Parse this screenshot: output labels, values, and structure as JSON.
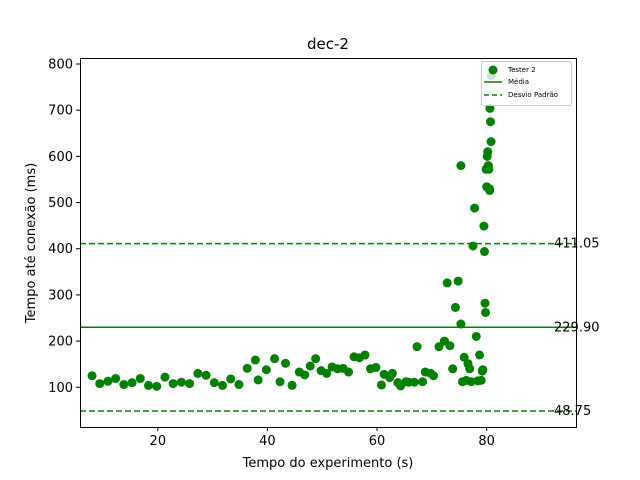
{
  "chart_data": {
    "type": "scatter",
    "title": "dec-2",
    "xlabel": "Tempo do experimento (s)",
    "ylabel": "Tempo até conexão (ms)",
    "xlim": [
      5.8,
      96.3
    ],
    "ylim": [
      14,
      813
    ],
    "xticks": [
      20,
      40,
      60,
      80
    ],
    "yticks": [
      100,
      200,
      300,
      400,
      500,
      600,
      700,
      800
    ],
    "grid": false,
    "legend_position": "top-right",
    "colors": {
      "points": "#008000",
      "lines": "#008000"
    },
    "legend": [
      {
        "label": "Tester 2",
        "kind": "marker"
      },
      {
        "label": "Média",
        "kind": "solid-line"
      },
      {
        "label": "Desvio Padrão",
        "kind": "dashed-line"
      }
    ],
    "reference_lines": [
      {
        "role": "mean",
        "value": 229.9,
        "label": "229.90",
        "style": "solid"
      },
      {
        "role": "std-upper",
        "value": 411.05,
        "label": "411.05",
        "style": "dashed"
      },
      {
        "role": "std-lower",
        "value": 48.75,
        "label": "48.75",
        "style": "dashed"
      }
    ],
    "series": [
      {
        "name": "Tester 2",
        "points": [
          [
            8,
            125
          ],
          [
            9.4,
            108
          ],
          [
            10.9,
            113
          ],
          [
            12.3,
            119
          ],
          [
            13.8,
            106
          ],
          [
            15.3,
            110
          ],
          [
            16.8,
            119
          ],
          [
            18.3,
            104
          ],
          [
            19.8,
            102
          ],
          [
            21.3,
            122
          ],
          [
            22.8,
            108
          ],
          [
            24.3,
            111
          ],
          [
            25.8,
            108
          ],
          [
            27.3,
            130
          ],
          [
            28.8,
            126
          ],
          [
            30.3,
            110
          ],
          [
            31.8,
            104
          ],
          [
            33.3,
            118
          ],
          [
            34.8,
            106
          ],
          [
            36.3,
            141
          ],
          [
            37.8,
            159
          ],
          [
            38.3,
            116
          ],
          [
            39.8,
            138
          ],
          [
            41.3,
            162
          ],
          [
            42.3,
            112
          ],
          [
            43.3,
            152
          ],
          [
            44.5,
            104
          ],
          [
            45.8,
            133
          ],
          [
            46.8,
            127
          ],
          [
            47.8,
            146
          ],
          [
            48.8,
            162
          ],
          [
            49.8,
            136
          ],
          [
            50.8,
            130
          ],
          [
            51.8,
            144
          ],
          [
            52.8,
            140
          ],
          [
            53.8,
            141
          ],
          [
            54.8,
            133
          ],
          [
            55.8,
            166
          ],
          [
            56.8,
            164
          ],
          [
            57.8,
            170
          ],
          [
            58.8,
            140
          ],
          [
            59.8,
            143
          ],
          [
            60.8,
            105
          ],
          [
            61.3,
            128
          ],
          [
            62.3,
            121
          ],
          [
            62.8,
            130
          ],
          [
            63.8,
            110
          ],
          [
            64.3,
            103
          ],
          [
            65.3,
            112
          ],
          [
            65.8,
            111
          ],
          [
            66.8,
            111
          ],
          [
            67.3,
            188
          ],
          [
            68.3,
            112
          ],
          [
            68.8,
            133
          ],
          [
            69.8,
            130
          ],
          [
            70.3,
            125
          ],
          [
            71.3,
            188
          ],
          [
            72.3,
            200
          ],
          [
            72.8,
            326
          ],
          [
            73.3,
            190
          ],
          [
            73.8,
            140
          ],
          [
            74.3,
            273
          ],
          [
            74.8,
            330
          ],
          [
            75.3,
            237
          ],
          [
            75.6,
            112
          ],
          [
            75.9,
            165
          ],
          [
            76.3,
            115
          ],
          [
            76.6,
            151
          ],
          [
            76.9,
            140
          ],
          [
            77.2,
            112
          ],
          [
            77.5,
            406
          ],
          [
            77.8,
            488
          ],
          [
            78.1,
            210
          ],
          [
            78.4,
            114
          ],
          [
            78.7,
            170
          ],
          [
            79.0,
            115
          ],
          [
            79.2,
            135
          ],
          [
            79.3,
            138
          ],
          [
            79.5,
            449
          ],
          [
            79.6,
            394
          ],
          [
            79.7,
            282
          ],
          [
            79.8,
            262
          ],
          [
            79.9,
            572
          ],
          [
            80.0,
            534
          ],
          [
            80.1,
            600
          ],
          [
            80.2,
            610
          ],
          [
            80.3,
            580
          ],
          [
            80.4,
            572
          ],
          [
            80.5,
            530
          ],
          [
            80.55,
            526
          ],
          [
            80.6,
            704
          ],
          [
            80.7,
            675
          ],
          [
            80.8,
            632
          ],
          [
            80.85,
            775
          ],
          [
            75.3,
            580
          ]
        ]
      }
    ]
  }
}
